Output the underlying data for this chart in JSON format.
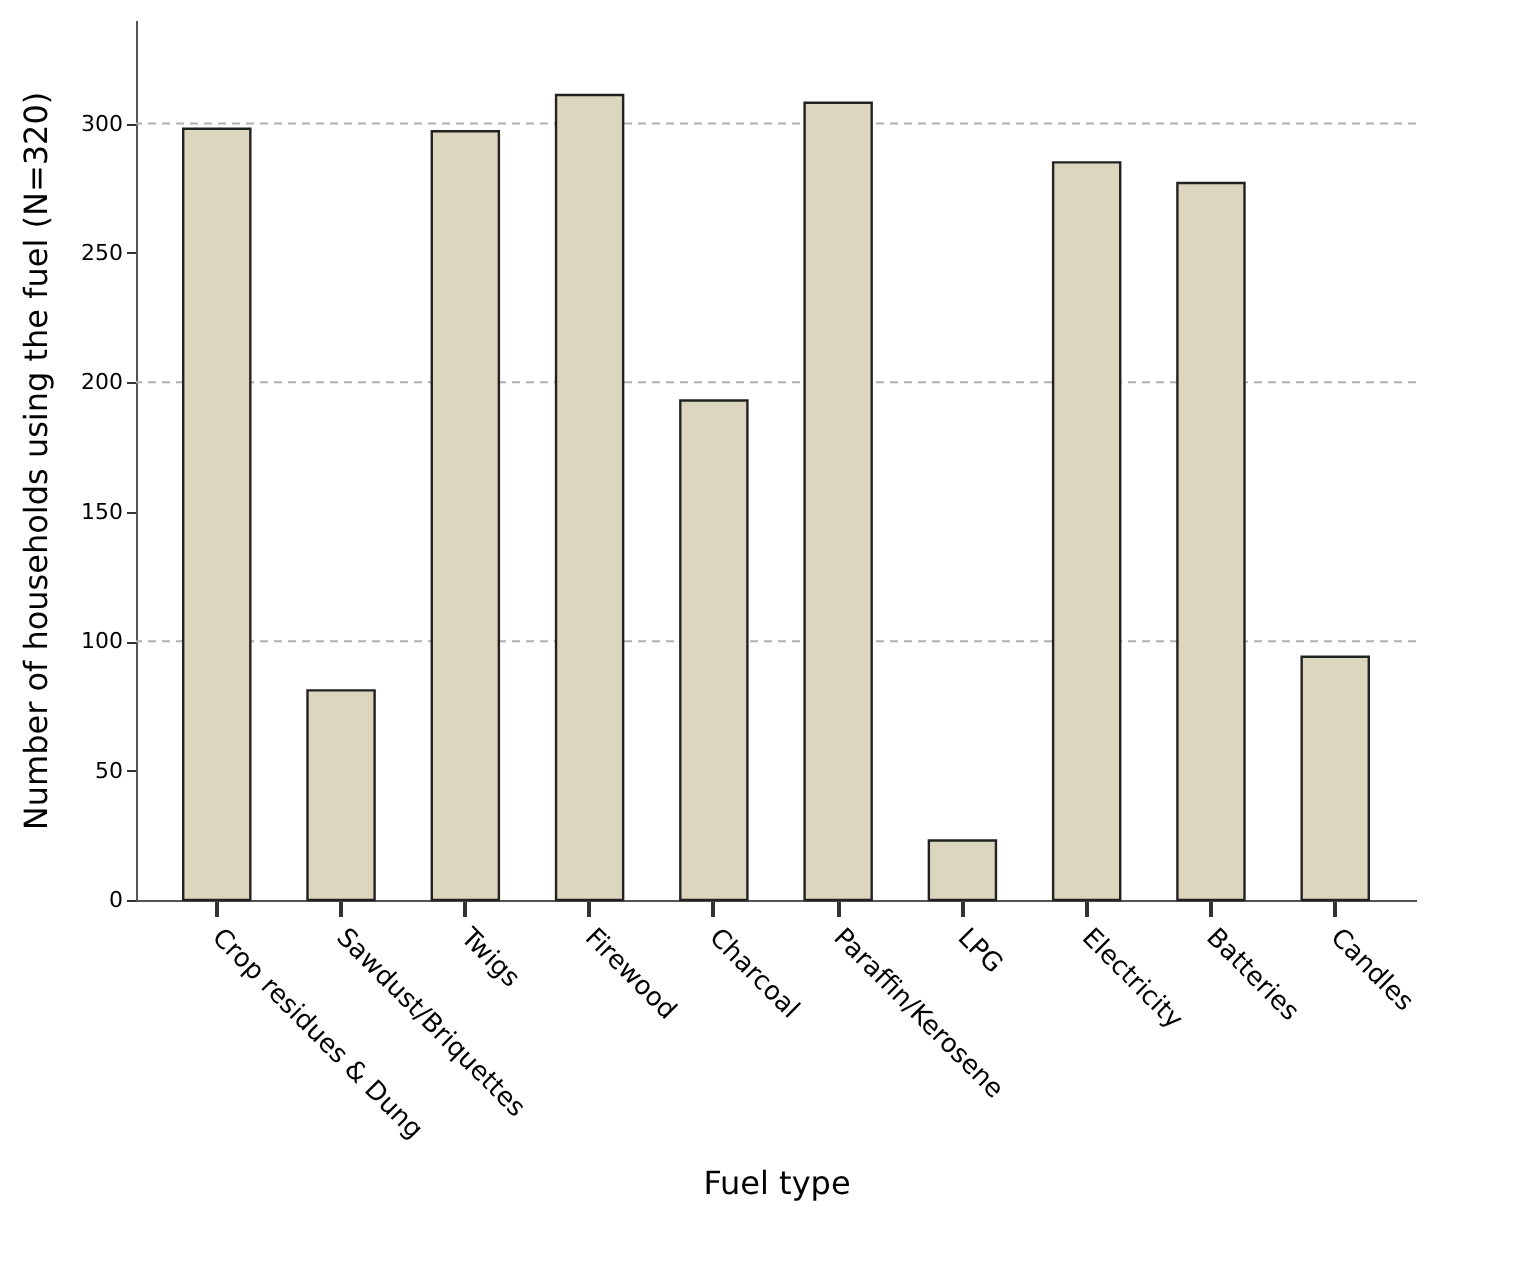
{
  "chart_data": {
    "type": "bar",
    "xlabel": "Fuel type",
    "ylabel": "Number of households using the fuel (N=320)",
    "categories": [
      "Crop residues & Dung",
      "Sawdust/Briquettes",
      "Twigs",
      "Firewood",
      "Charcoal",
      "Paraffin/Kerosene",
      "LPG",
      "Electricity",
      "Batteries",
      "Candles"
    ],
    "values": [
      298,
      81,
      297,
      311,
      193,
      308,
      23,
      285,
      277,
      94
    ],
    "color": "#ddd6bf",
    "ylim": [
      0,
      340
    ],
    "yticks": [
      0,
      50,
      100,
      150,
      200,
      250,
      300
    ],
    "ref_lines": [
      {
        "axis": "y",
        "value": 100,
        "line_style": "dashed",
        "color": "#b0b0b0"
      },
      {
        "axis": "y",
        "value": 200,
        "line_style": "dashed",
        "color": "#b0b0b0"
      },
      {
        "axis": "y",
        "value": 300,
        "line_style": "dashed",
        "color": "#b0b0b0"
      }
    ]
  }
}
